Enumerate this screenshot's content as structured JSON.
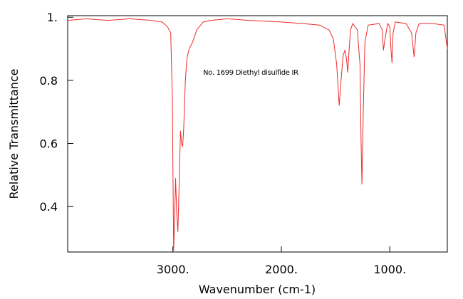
{
  "chart_data": {
    "type": "line",
    "annotation": "No. 1699 Diethyl disulfide IR",
    "x_label": "Wavenumber (cm-1)",
    "y_label": "Relative Transmittance",
    "color": "#ee2a2a",
    "xlim": [
      3970,
      470
    ],
    "ylim": [
      0.256,
      1.005
    ],
    "xticks": [
      {
        "value": 3000,
        "label": "3000."
      },
      {
        "value": 2000,
        "label": "2000."
      },
      {
        "value": 1000,
        "label": "1000."
      }
    ],
    "yticks": [
      0.4,
      0.6,
      0.8,
      {
        "value": 1,
        "label": "1."
      }
    ],
    "x": [
      3970,
      3800,
      3600,
      3400,
      3200,
      3100,
      3050,
      3020,
      3005,
      2998,
      2993,
      2985,
      2975,
      2965,
      2954,
      2940,
      2930,
      2920,
      2910,
      2900,
      2885,
      2870,
      2850,
      2820,
      2780,
      2720,
      2650,
      2500,
      2300,
      2000,
      1800,
      1650,
      1560,
      1520,
      1490,
      1467,
      1450,
      1430,
      1414,
      1400,
      1388,
      1375,
      1362,
      1342,
      1300,
      1275,
      1265,
      1257,
      1245,
      1230,
      1200,
      1100,
      1070,
      1059,
      1045,
      1020,
      1000,
      990,
      980,
      970,
      950,
      850,
      800,
      776,
      760,
      730,
      600,
      500,
      470
    ],
    "values": [
      0.99,
      0.995,
      0.99,
      0.995,
      0.99,
      0.985,
      0.97,
      0.95,
      0.75,
      0.45,
      0.26,
      0.35,
      0.49,
      0.38,
      0.32,
      0.5,
      0.64,
      0.6,
      0.59,
      0.65,
      0.8,
      0.87,
      0.9,
      0.92,
      0.96,
      0.985,
      0.99,
      0.995,
      0.99,
      0.985,
      0.98,
      0.975,
      0.96,
      0.93,
      0.85,
      0.72,
      0.8,
      0.88,
      0.895,
      0.87,
      0.825,
      0.9,
      0.96,
      0.98,
      0.96,
      0.85,
      0.6,
      0.47,
      0.7,
      0.92,
      0.975,
      0.98,
      0.96,
      0.895,
      0.93,
      0.98,
      0.97,
      0.9,
      0.855,
      0.95,
      0.985,
      0.98,
      0.95,
      0.874,
      0.95,
      0.98,
      0.98,
      0.975,
      0.9
    ]
  }
}
